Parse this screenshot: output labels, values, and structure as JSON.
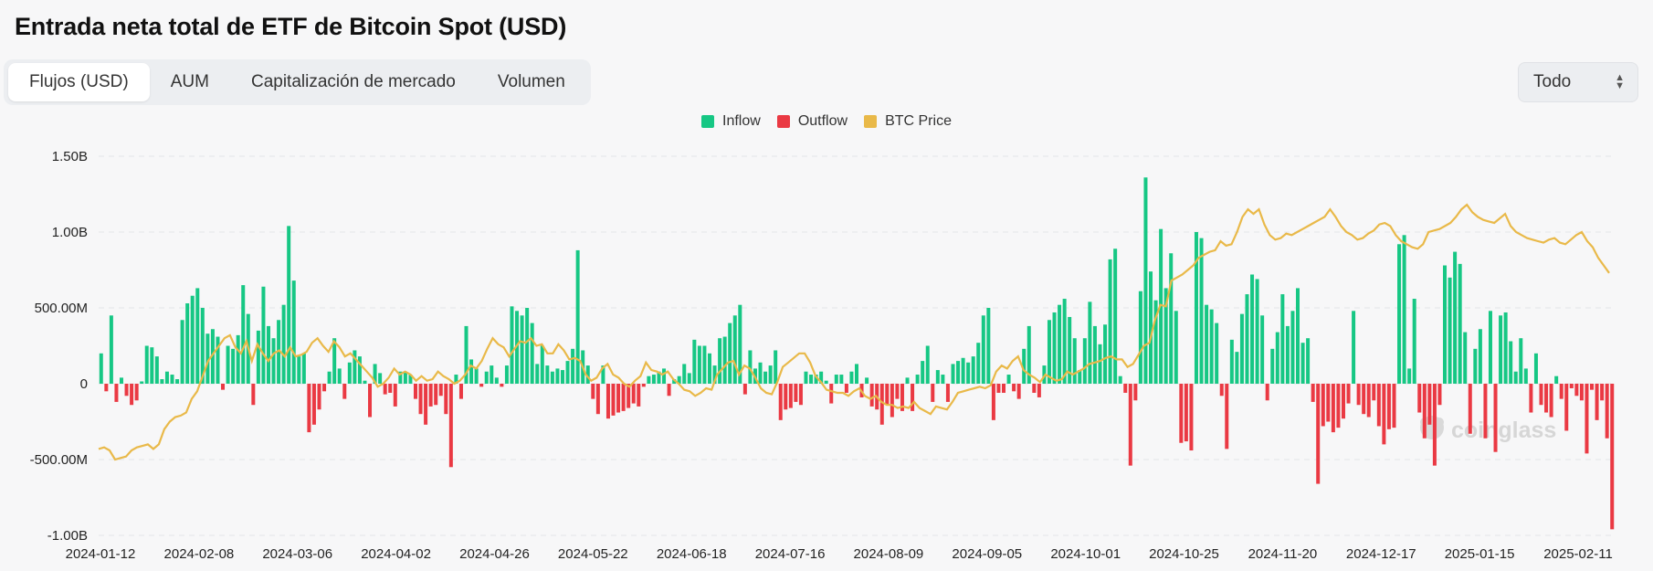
{
  "page": {
    "title": "Entrada neta total de ETF de Bitcoin Spot (USD)"
  },
  "tabs": [
    {
      "label": "Flujos (USD)",
      "active": true
    },
    {
      "label": "AUM",
      "active": false
    },
    {
      "label": "Capitalización de mercado",
      "active": false
    },
    {
      "label": "Volumen",
      "active": false
    }
  ],
  "range_select": {
    "value": "Todo",
    "icon": "up-down-chevron-icon"
  },
  "watermark": "coinglass",
  "colors": {
    "inflow": "#16c784",
    "outflow": "#ea3943",
    "price": "#e9b949"
  },
  "chart_data": {
    "type": "bar",
    "title": "",
    "legend": [
      "Inflow",
      "Outflow",
      "BTC Price"
    ],
    "legend_position": "top-center",
    "grid": true,
    "ylim": [
      -1000000000,
      1500000000
    ],
    "y_ticks": [
      {
        "value": 1500000000,
        "label": "1.50B"
      },
      {
        "value": 1000000000,
        "label": "1.00B"
      },
      {
        "value": 500000000,
        "label": "500.00M"
      },
      {
        "value": 0,
        "label": "0"
      },
      {
        "value": -500000000,
        "label": "-500.00M"
      },
      {
        "value": -1000000000,
        "label": "-1.00B"
      }
    ],
    "x_tick_labels": [
      "2024-01-12",
      "2024-02-08",
      "2024-03-06",
      "2024-04-02",
      "2024-04-26",
      "2024-05-22",
      "2024-06-18",
      "2024-07-16",
      "2024-08-09",
      "2024-09-05",
      "2024-10-01",
      "2024-10-25",
      "2024-11-20",
      "2024-12-17",
      "2025-01-15",
      "2025-02-11"
    ],
    "series": [
      {
        "name": "Net flow (USD, millions)",
        "values": [
          200,
          -50,
          450,
          -120,
          40,
          -80,
          -140,
          -110,
          15,
          250,
          240,
          180,
          30,
          80,
          60,
          30,
          420,
          530,
          580,
          630,
          500,
          330,
          360,
          310,
          -40,
          250,
          230,
          320,
          650,
          460,
          -140,
          350,
          640,
          380,
          300,
          420,
          520,
          1040,
          680,
          180,
          200,
          -320,
          -270,
          -170,
          -50,
          80,
          300,
          100,
          -100,
          140,
          220,
          180,
          20,
          -220,
          130,
          70,
          -70,
          -60,
          -150,
          80,
          80,
          60,
          -100,
          -200,
          -270,
          -150,
          -140,
          -80,
          -200,
          -550,
          60,
          -100,
          380,
          160,
          100,
          -20,
          80,
          120,
          40,
          -20,
          120,
          510,
          480,
          450,
          500,
          400,
          130,
          250,
          120,
          80,
          100,
          90,
          150,
          230,
          880,
          220,
          120,
          -100,
          -200,
          120,
          -230,
          -210,
          -190,
          -180,
          -160,
          -130,
          -150,
          -20,
          50,
          60,
          80,
          100,
          -80,
          30,
          50,
          130,
          70,
          290,
          250,
          250,
          200,
          120,
          300,
          310,
          400,
          450,
          520,
          -70,
          220,
          100,
          140,
          80,
          120,
          220,
          -240,
          -170,
          -160,
          -120,
          -140,
          80,
          60,
          60,
          80,
          20,
          -130,
          60,
          60,
          -60,
          80,
          130,
          -90,
          40,
          -150,
          -170,
          -270,
          -140,
          -220,
          -100,
          -180,
          40,
          -180,
          60,
          150,
          250,
          -120,
          90,
          60,
          -120,
          130,
          150,
          170,
          140,
          180,
          270,
          450,
          500,
          -240,
          -60,
          -60,
          60,
          -50,
          -100,
          230,
          380,
          -60,
          -90,
          120,
          420,
          470,
          520,
          560,
          440,
          300,
          90,
          300,
          540,
          380,
          260,
          390,
          820,
          890,
          50,
          -60,
          -540,
          -110,
          610,
          1360,
          740,
          550,
          1020,
          630,
          860,
          480,
          -390,
          -380,
          -440,
          1000,
          960,
          520,
          490,
          400,
          -80,
          -430,
          290,
          210,
          460,
          590,
          720,
          690,
          450,
          -110,
          230,
          340,
          590,
          380,
          480,
          630,
          270,
          300,
          -120,
          -660,
          -280,
          -250,
          -320,
          -290,
          -230,
          -130,
          480,
          -140,
          -200,
          -220,
          -110,
          -280,
          -400,
          -300,
          -290,
          920,
          980,
          100,
          560,
          -190,
          -360,
          -270,
          -540,
          -140,
          780,
          700,
          870,
          790,
          340,
          -330,
          230,
          360,
          -360,
          480,
          -450,
          450,
          470,
          280,
          80,
          300,
          100,
          -190,
          200,
          -140,
          -190,
          -220,
          50,
          -100,
          -310,
          -30,
          -80,
          -110,
          -460,
          -40,
          -240,
          -110,
          -360,
          -960
        ]
      },
      {
        "name": "BTC Price (plotted on axis scale)",
        "values": [
          -430,
          -420,
          -440,
          -500,
          -490,
          -480,
          -440,
          -420,
          -410,
          -400,
          -430,
          -400,
          -300,
          -250,
          -220,
          -210,
          -190,
          -100,
          -50,
          50,
          150,
          200,
          250,
          300,
          320,
          240,
          200,
          280,
          150,
          260,
          200,
          150,
          200,
          220,
          180,
          240,
          180,
          190,
          210,
          270,
          300,
          250,
          210,
          280,
          240,
          180,
          200,
          160,
          120,
          80,
          40,
          -20,
          0,
          40,
          100,
          60,
          80,
          60,
          20,
          50,
          20,
          30,
          80,
          50,
          30,
          0,
          20,
          60,
          120,
          100,
          150,
          230,
          300,
          260,
          240,
          180,
          230,
          280,
          270,
          300,
          250,
          260,
          200,
          200,
          260,
          220,
          160,
          170,
          150,
          60,
          20,
          40,
          100,
          130,
          60,
          40,
          0,
          -20,
          20,
          50,
          140,
          90,
          80,
          60,
          80,
          30,
          0,
          -40,
          -50,
          -80,
          -60,
          -30,
          -40,
          60,
          100,
          140,
          150,
          60,
          120,
          100,
          40,
          -30,
          -60,
          -70,
          10,
          110,
          140,
          170,
          200,
          200,
          140,
          50,
          10,
          -40,
          -50,
          -60,
          -60,
          -80,
          -50,
          -30,
          -80,
          -100,
          -80,
          -120,
          -140,
          -140,
          -160,
          -150,
          -160,
          -120,
          -160,
          -180,
          -200,
          -150,
          -160,
          -170,
          -120,
          -60,
          -50,
          -40,
          -30,
          -20,
          -30,
          -10,
          80,
          120,
          100,
          150,
          180,
          90,
          60,
          40,
          10,
          60,
          40,
          20,
          30,
          80,
          60,
          80,
          100,
          130,
          140,
          150,
          170,
          180,
          160,
          160,
          110,
          130,
          190,
          250,
          270,
          420,
          520,
          510,
          680,
          700,
          720,
          750,
          780,
          830,
          850,
          870,
          880,
          940,
          910,
          920,
          1000,
          1100,
          1150,
          1120,
          1150,
          1050,
          980,
          950,
          960,
          990,
          980,
          1000,
          1020,
          1040,
          1060,
          1080,
          1100,
          1150,
          1100,
          1040,
          1000,
          980,
          950,
          960,
          990,
          1010,
          1050,
          1060,
          1040,
          980,
          940,
          920,
          900,
          890,
          920,
          1000,
          1010,
          1020,
          1040,
          1060,
          1100,
          1150,
          1180,
          1130,
          1100,
          1080,
          1070,
          1060,
          1090,
          1120,
          1040,
          1000,
          980,
          960,
          950,
          940,
          930,
          950,
          960,
          930,
          920,
          950,
          980,
          1000,
          940,
          900,
          830,
          780,
          730
        ]
      }
    ]
  }
}
